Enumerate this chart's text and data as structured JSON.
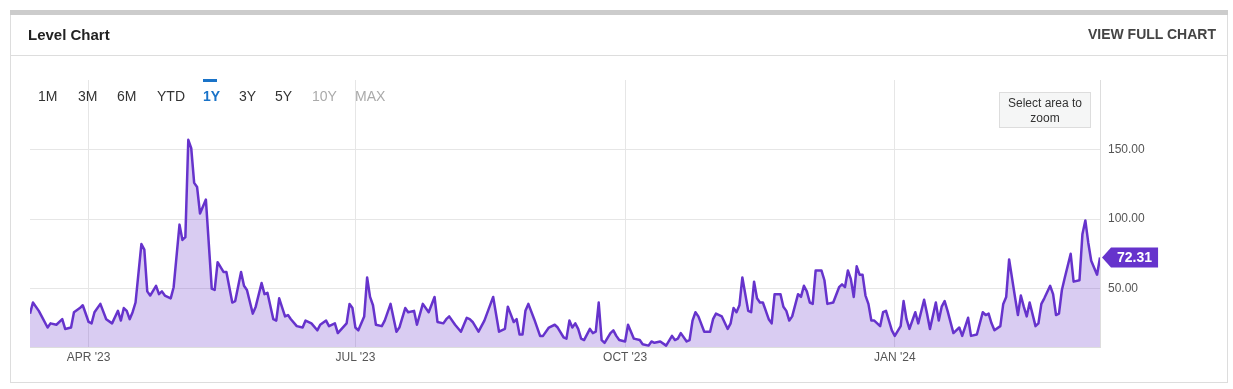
{
  "chart_data": {
    "type": "area",
    "title": "Level Chart",
    "annotations": [
      "VIEW FULL CHART",
      "1M",
      "3M",
      "6M",
      "YTD",
      "1Y",
      "3Y",
      "5Y",
      "10Y",
      "MAX",
      "Select area to zoom"
    ],
    "xlim": [
      "2023-03-12",
      "2024-03-11"
    ],
    "xticks": [
      {
        "value": "2023-04-01",
        "label": "APR '23"
      },
      {
        "value": "2023-07-01",
        "label": "JUL '23"
      },
      {
        "value": "2023-10-01",
        "label": "OCT '23"
      },
      {
        "value": "2024-01-01",
        "label": "JAN '24"
      }
    ],
    "ylim": [
      8,
      200
    ],
    "yticks": [
      {
        "value": 50,
        "label": "50.00"
      },
      {
        "value": 100,
        "label": "100.00"
      },
      {
        "value": 150,
        "label": "150.00"
      }
    ],
    "grid": true,
    "marker": "none",
    "x": [
      "2023-03-12",
      "2023-03-13",
      "2023-03-15",
      "2023-03-16",
      "2023-03-18",
      "2023-03-19",
      "2023-03-21",
      "2023-03-23",
      "2023-03-24",
      "2023-03-26",
      "2023-03-27",
      "2023-03-29",
      "2023-03-30",
      "2023-04-01",
      "2023-04-02",
      "2023-04-03",
      "2023-04-05",
      "2023-04-07",
      "2023-04-09",
      "2023-04-11",
      "2023-04-12",
      "2023-04-13",
      "2023-04-14",
      "2023-04-15",
      "2023-04-16",
      "2023-04-17",
      "2023-04-19",
      "2023-04-20",
      "2023-04-21",
      "2023-04-22",
      "2023-04-24",
      "2023-04-25",
      "2023-04-26",
      "2023-04-27",
      "2023-04-29",
      "2023-04-30",
      "2023-05-02",
      "2023-05-03",
      "2023-05-04",
      "2023-05-05",
      "2023-05-06",
      "2023-05-07",
      "2023-05-08",
      "2023-05-09",
      "2023-05-11",
      "2023-05-13",
      "2023-05-14",
      "2023-05-15",
      "2023-05-17",
      "2023-05-18",
      "2023-05-20",
      "2023-05-21",
      "2023-05-23",
      "2023-05-24",
      "2023-05-25",
      "2023-05-27",
      "2023-05-28",
      "2023-05-30",
      "2023-05-31",
      "2023-06-01",
      "2023-06-03",
      "2023-06-04",
      "2023-06-05",
      "2023-06-07",
      "2023-06-08",
      "2023-06-09",
      "2023-06-11",
      "2023-06-13",
      "2023-06-14",
      "2023-06-16",
      "2023-06-18",
      "2023-06-19",
      "2023-06-21",
      "2023-06-22",
      "2023-06-24",
      "2023-06-25",
      "2023-06-28",
      "2023-06-29",
      "2023-06-30",
      "2023-07-01",
      "2023-07-02",
      "2023-07-04",
      "2023-07-05",
      "2023-07-06",
      "2023-07-07",
      "2023-07-08",
      "2023-07-10",
      "2023-07-11",
      "2023-07-13",
      "2023-07-15",
      "2023-07-16",
      "2023-07-18",
      "2023-07-19",
      "2023-07-21",
      "2023-07-22",
      "2023-07-24",
      "2023-07-26",
      "2023-07-28",
      "2023-07-29",
      "2023-07-31",
      "2023-08-01",
      "2023-08-02",
      "2023-08-04",
      "2023-08-06",
      "2023-08-08",
      "2023-08-09",
      "2023-08-10",
      "2023-08-12",
      "2023-08-14",
      "2023-08-17",
      "2023-08-19",
      "2023-08-21",
      "2023-08-22",
      "2023-08-24",
      "2023-08-25",
      "2023-08-26",
      "2023-08-27",
      "2023-08-28",
      "2023-08-29",
      "2023-08-31",
      "2023-09-02",
      "2023-09-03",
      "2023-09-05",
      "2023-09-07",
      "2023-09-08",
      "2023-09-10",
      "2023-09-11",
      "2023-09-12",
      "2023-09-13",
      "2023-09-14",
      "2023-09-15",
      "2023-09-16",
      "2023-09-17",
      "2023-09-19",
      "2023-09-20",
      "2023-09-21",
      "2023-09-22",
      "2023-09-23",
      "2023-09-24",
      "2023-09-26",
      "2023-09-27",
      "2023-09-28",
      "2023-09-29",
      "2023-10-01",
      "2023-10-02",
      "2023-10-04",
      "2023-10-06",
      "2023-10-07",
      "2023-10-09",
      "2023-10-10",
      "2023-10-11",
      "2023-10-13",
      "2023-10-15",
      "2023-10-17",
      "2023-10-18",
      "2023-10-19",
      "2023-10-20",
      "2023-10-22",
      "2023-10-23",
      "2023-10-24",
      "2023-10-25",
      "2023-10-26",
      "2023-10-28",
      "2023-10-30",
      "2023-10-31",
      "2023-11-01",
      "2023-11-03",
      "2023-11-05",
      "2023-11-06",
      "2023-11-07",
      "2023-11-08",
      "2023-11-09",
      "2023-11-10",
      "2023-11-12",
      "2023-11-13",
      "2023-11-14",
      "2023-11-15",
      "2023-11-16",
      "2023-11-17",
      "2023-11-19",
      "2023-11-20",
      "2023-11-21",
      "2023-11-23",
      "2023-11-24",
      "2023-11-25",
      "2023-11-26",
      "2023-11-27",
      "2023-11-29",
      "2023-11-30",
      "2023-12-01",
      "2023-12-02",
      "2023-12-03",
      "2023-12-04",
      "2023-12-05",
      "2023-12-07",
      "2023-12-08",
      "2023-12-09",
      "2023-12-11",
      "2023-12-13",
      "2023-12-14",
      "2023-12-15",
      "2023-12-16",
      "2023-12-17",
      "2023-12-18",
      "2023-12-19",
      "2023-12-20",
      "2023-12-21",
      "2023-12-22",
      "2023-12-23",
      "2023-12-24",
      "2023-12-25",
      "2023-12-27",
      "2023-12-28",
      "2023-12-29",
      "2023-12-30",
      "2023-12-31",
      "2024-01-01",
      "2024-01-03",
      "2024-01-04",
      "2024-01-05",
      "2024-01-06",
      "2024-01-08",
      "2024-01-09",
      "2024-01-11",
      "2024-01-12",
      "2024-01-13",
      "2024-01-15",
      "2024-01-16",
      "2024-01-17",
      "2024-01-18",
      "2024-01-19",
      "2024-01-21",
      "2024-01-23",
      "2024-01-24",
      "2024-01-26",
      "2024-01-27",
      "2024-01-29",
      "2024-01-31",
      "2024-02-01",
      "2024-02-02",
      "2024-02-03",
      "2024-02-04",
      "2024-02-06",
      "2024-02-07",
      "2024-02-08",
      "2024-02-09",
      "2024-02-11",
      "2024-02-12",
      "2024-02-13",
      "2024-02-14",
      "2024-02-15",
      "2024-02-16",
      "2024-02-18",
      "2024-02-19",
      "2024-02-20",
      "2024-02-21",
      "2024-02-23",
      "2024-02-24",
      "2024-02-25",
      "2024-02-26",
      "2024-02-27",
      "2024-02-28",
      "2024-03-01",
      "2024-03-02",
      "2024-03-04",
      "2024-03-05",
      "2024-03-06",
      "2024-03-07",
      "2024-03-08",
      "2024-03-10",
      "2024-03-11"
    ],
    "series": [
      {
        "color": "#6633cc",
        "values": [
          32,
          40,
          34,
          30,
          22,
          25,
          24,
          28,
          21,
          22,
          33,
          36,
          38,
          26,
          25,
          33,
          39,
          28,
          25,
          34,
          27,
          36,
          34,
          28,
          33,
          40,
          82,
          78,
          48,
          45,
          52,
          46,
          48,
          45,
          43,
          51,
          96,
          85,
          87,
          157,
          151,
          126,
          123,
          104,
          114,
          50,
          49,
          69,
          62,
          62,
          40,
          41,
          62,
          52,
          49,
          32,
          37,
          54,
          46,
          47,
          28,
          27,
          43,
          30,
          31,
          28,
          23,
          22,
          27,
          25,
          20,
          24,
          27,
          23,
          25,
          18,
          25,
          39,
          36,
          22,
          20,
          30,
          58,
          44,
          38,
          24,
          23,
          27,
          39,
          19,
          22,
          36,
          33,
          34,
          24,
          39,
          33,
          44,
          26,
          25,
          28,
          30,
          24,
          19,
          29,
          28,
          26,
          19,
          27,
          44,
          19,
          21,
          37,
          26,
          28,
          17,
          17,
          34,
          39,
          28,
          16,
          16,
          22,
          24,
          22,
          15,
          14,
          27,
          22,
          25,
          21,
          14,
          13,
          21,
          18,
          19,
          40,
          13,
          11,
          18,
          20,
          16,
          13,
          12,
          24,
          14,
          13,
          10,
          9,
          12,
          11,
          12,
          9,
          16,
          13,
          14,
          18,
          12,
          13,
          27,
          33,
          30,
          19,
          19,
          28,
          32,
          30,
          21,
          25,
          36,
          33,
          38,
          58,
          34,
          33,
          55,
          43,
          40,
          40,
          28,
          25,
          46,
          46,
          37,
          34,
          27,
          30,
          46,
          44,
          52,
          48,
          40,
          39,
          63,
          63,
          56,
          39,
          40,
          51,
          53,
          51,
          63,
          57,
          44,
          66,
          60,
          60,
          45,
          39,
          27,
          27,
          23,
          33,
          34,
          27,
          20,
          16,
          23,
          41,
          28,
          21,
          33,
          25,
          42,
          32,
          21,
          40,
          27,
          37,
          41,
          34,
          18,
          22,
          16,
          29,
          16,
          17,
          33,
          31,
          32,
          25,
          20,
          23,
          39,
          44,
          71,
          44,
          31,
          45,
          37,
          30,
          40,
          23,
          25,
          39,
          43,
          52,
          46,
          31,
          32,
          49,
          58,
          75,
          55,
          56,
          89,
          99,
          83,
          70,
          60,
          72.31
        ],
        "value_labels": [
          null,
          null,
          null,
          null,
          null,
          null,
          null,
          null,
          null,
          null,
          null,
          null,
          null,
          null,
          null,
          null,
          null,
          null,
          null,
          null,
          null,
          null,
          null,
          null,
          null,
          null,
          null,
          null,
          null,
          null,
          null,
          null,
          null,
          null,
          null,
          null,
          null,
          null,
          null,
          null,
          null,
          null,
          null,
          null,
          null,
          null,
          null,
          null,
          null,
          null,
          null,
          null,
          null,
          null,
          null,
          null,
          null,
          null,
          null,
          null,
          null,
          null,
          null,
          null,
          null,
          null,
          null,
          null,
          null,
          null,
          null,
          null,
          null,
          null,
          null,
          null,
          null,
          null,
          null,
          null,
          null,
          null,
          null,
          null,
          null,
          null,
          null,
          null,
          null,
          null,
          null,
          null,
          null,
          null,
          null,
          null,
          null,
          null,
          null,
          null,
          null,
          null,
          null,
          null,
          null,
          null,
          null,
          null,
          null,
          null,
          null,
          null,
          null,
          null,
          null,
          null,
          null,
          null,
          null,
          null,
          null,
          null,
          null,
          null,
          null,
          null,
          null,
          null,
          null,
          null,
          null,
          null,
          null,
          null,
          null,
          null,
          null,
          null,
          null,
          null,
          null,
          null,
          null,
          null,
          null,
          null,
          null,
          null,
          null,
          null,
          null,
          null,
          null,
          null,
          null,
          null,
          null,
          null,
          null,
          null,
          null,
          null,
          null,
          null,
          null,
          null,
          null,
          null,
          null,
          null,
          null,
          null,
          null,
          null,
          null,
          null,
          null,
          null,
          null,
          null,
          null,
          null,
          null,
          null,
          null,
          null,
          null,
          null,
          null,
          null,
          null,
          null,
          null,
          null,
          null,
          null,
          null,
          null,
          null,
          null,
          null,
          null,
          null,
          null,
          null,
          null,
          null,
          null,
          null,
          null,
          null,
          null,
          null,
          null,
          null,
          null,
          null,
          null,
          null,
          null,
          null,
          null,
          null,
          null,
          null,
          null,
          null,
          null,
          null,
          null,
          null,
          null,
          null,
          null,
          null,
          null,
          null,
          null,
          null,
          null,
          null,
          null,
          null,
          null,
          null,
          null,
          null,
          null,
          null,
          null,
          null,
          null,
          null,
          null,
          null,
          null,
          null,
          null,
          null,
          null,
          null,
          null,
          null,
          null,
          null,
          null,
          null,
          null,
          null,
          null,
          "72.31"
        ]
      }
    ]
  }
}
